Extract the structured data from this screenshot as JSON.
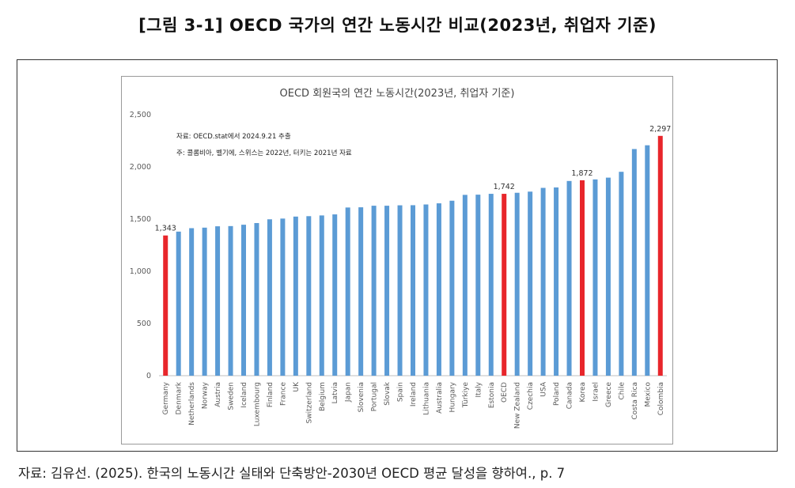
{
  "figure_title": "[그림 3-1] OECD 국가의 연간 노동시간 비교(2023년, 취업자 기준)",
  "source_text": "자료: 김유선. (2025). 한국의 노동시간 실태와 단축방안-2030년 OECD 평균 달성을 향하여., p. 7",
  "chart_data": {
    "type": "bar",
    "title": "OECD 회원국의 연간 노동시간(2023년, 취업자 기준)",
    "xlabel": "",
    "ylabel": "",
    "ylim": [
      0,
      2500
    ],
    "yticks": [
      0,
      500,
      1000,
      1500,
      2000,
      2500
    ],
    "ytick_labels": [
      "0",
      "500",
      "1,000",
      "1,500",
      "2,000",
      "2,500"
    ],
    "grid": false,
    "notes": [
      "자료: OECD.stat에서 2024.9.21 추출",
      "주: 콜롬비아, 벨기에, 스위스는 2022년, 터키는 2021년 자료"
    ],
    "categories": [
      "Germany",
      "Denmark",
      "Netherlands",
      "Norway",
      "Austria",
      "Sweden",
      "Iceland",
      "Luxembourg",
      "Finland",
      "France",
      "UK",
      "Switzerland",
      "Belgium",
      "Latvia",
      "Japan",
      "Slovenia",
      "Portugal",
      "Slovak",
      "Spain",
      "Ireland",
      "Lithuania",
      "Australia",
      "Hungary",
      "Türkiye",
      "Italy",
      "Estonia",
      "OECD",
      "New Zealand",
      "Czechia",
      "USA",
      "Poland",
      "Canada",
      "Korea",
      "Israel",
      "Greece",
      "Chile",
      "Costa Rica",
      "Mexico",
      "Colombia"
    ],
    "values": [
      1343,
      1380,
      1413,
      1418,
      1431,
      1433,
      1446,
      1462,
      1498,
      1505,
      1524,
      1528,
      1535,
      1545,
      1611,
      1613,
      1628,
      1628,
      1632,
      1633,
      1640,
      1651,
      1676,
      1732,
      1734,
      1742,
      1742,
      1752,
      1763,
      1799,
      1803,
      1865,
      1872,
      1880,
      1897,
      1953,
      2171,
      2207,
      2297
    ],
    "highlight": [
      "Germany",
      "OECD",
      "Korea",
      "Colombia"
    ],
    "data_labels": [
      {
        "category": "Germany",
        "text": "1,343"
      },
      {
        "category": "OECD",
        "text": "1,742"
      },
      {
        "category": "Korea",
        "text": "1,872"
      },
      {
        "category": "Colombia",
        "text": "2,297"
      }
    ],
    "colors": {
      "bar": "#5b9bd5",
      "highlight": "#e8262b",
      "axis": "#bfbfbf",
      "text": "#595959"
    }
  }
}
